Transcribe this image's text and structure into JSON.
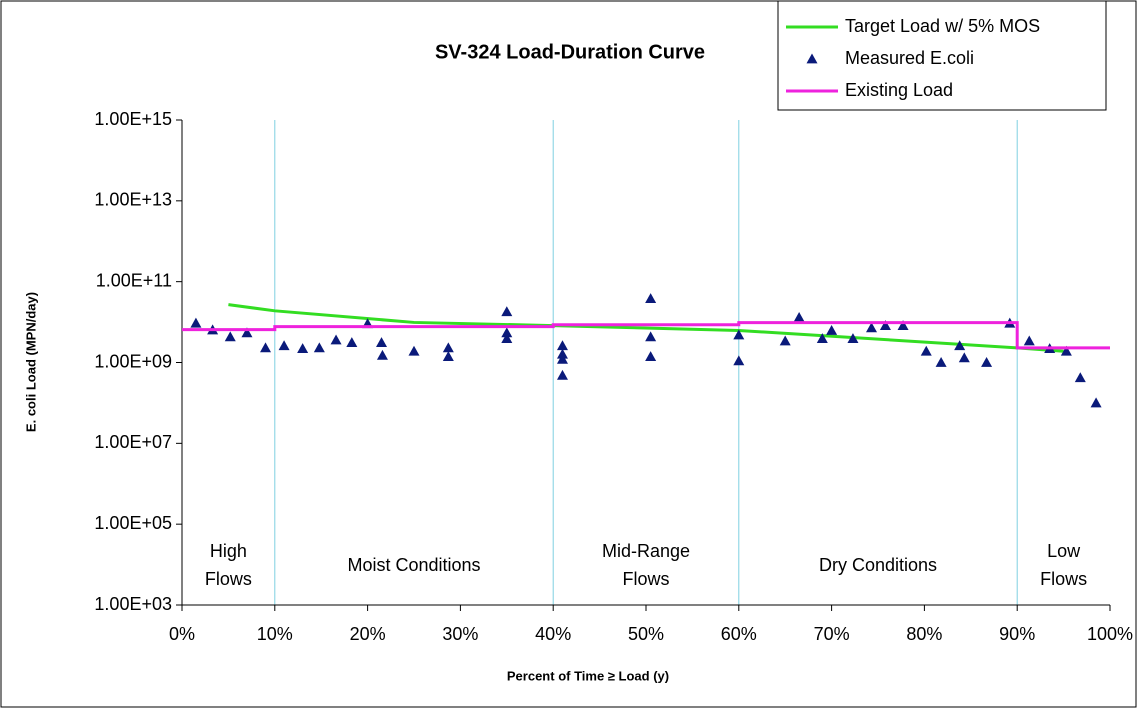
{
  "chart_data": {
    "type": "scatter",
    "title": "SV-324 Load-Duration Curve",
    "x_label": "Percent of Time ≥ Load (y)",
    "y_label": "E. coli Load (MPN/day)",
    "log_y": true,
    "xlim": [
      0,
      100
    ],
    "xticks": [
      {
        "value": 0,
        "label": "0%"
      },
      {
        "value": 10,
        "label": "10%"
      },
      {
        "value": 20,
        "label": "20%"
      },
      {
        "value": 30,
        "label": "30%"
      },
      {
        "value": 40,
        "label": "40%"
      },
      {
        "value": 50,
        "label": "50%"
      },
      {
        "value": 60,
        "label": "60%"
      },
      {
        "value": 70,
        "label": "70%"
      },
      {
        "value": 80,
        "label": "80%"
      },
      {
        "value": 90,
        "label": "90%"
      },
      {
        "value": 100,
        "label": "100%"
      }
    ],
    "ylim": [
      1000,
      1000000000000000
    ],
    "yticks": [
      {
        "value": 1000,
        "label": "1.00E+03"
      },
      {
        "value": 100000,
        "label": "1.00E+05"
      },
      {
        "value": 10000000,
        "label": "1.00E+07"
      },
      {
        "value": 1000000000,
        "label": "1.00E+09"
      },
      {
        "value": 100000000000,
        "label": "1.00E+11"
      },
      {
        "value": 10000000000000,
        "label": "1.00E+13"
      },
      {
        "value": 1000000000000000,
        "label": "1.00E+15"
      }
    ],
    "zone_color": "#7fd0e0",
    "zones": [
      {
        "start": 0,
        "end": 10,
        "label": [
          "High",
          "Flows"
        ]
      },
      {
        "start": 10,
        "end": 40,
        "label": [
          "Moist Conditions"
        ]
      },
      {
        "start": 40,
        "end": 60,
        "label": [
          "Mid-Range",
          "Flows"
        ]
      },
      {
        "start": 60,
        "end": 90,
        "label": [
          "Dry Conditions"
        ]
      },
      {
        "start": 90,
        "end": 100,
        "label": [
          "Low",
          "Flows"
        ]
      }
    ],
    "series": [
      {
        "name": "Target Load w/ 5% MOS",
        "kind": "line",
        "color": "#33dd22",
        "x": [
          5,
          10,
          25,
          40,
          60,
          90,
          95
        ],
        "values": [
          27000000000,
          19000000000,
          9800000000,
          8200000000,
          6200000000,
          2300000000,
          1900000000
        ]
      },
      {
        "name": "Measured E.coli",
        "kind": "marker",
        "color": "#0a1a7a",
        "x": [
          1.5,
          3.3,
          5.2,
          7,
          9,
          11,
          13,
          14.8,
          16.6,
          18.3,
          20,
          21.5,
          21.6,
          25,
          28.7,
          28.7,
          35,
          35,
          35,
          41,
          41,
          41,
          41,
          50.5,
          50.5,
          50.5,
          60,
          60,
          65,
          66.5,
          69,
          70,
          72.3,
          74.3,
          75.8,
          77.7,
          80.2,
          81.8,
          83.8,
          84.3,
          86.7,
          89.2,
          91.3,
          93.5,
          95.3,
          96.8,
          98.5
        ],
        "values": [
          9400000000,
          6400000000,
          4300000000,
          5400000000,
          2300000000,
          2600000000,
          2200000000,
          2300000000,
          3600000000,
          3100000000,
          9100000000,
          3100000000,
          1500000000,
          1900000000,
          2300000000,
          1400000000,
          18000000000,
          5400000000,
          3900000000,
          2600000000,
          1600000000,
          1200000000,
          480000000,
          38000000000,
          4300000000,
          1400000000,
          4800000000,
          1100000000,
          3400000000,
          13000000000,
          3900000000,
          6200000000,
          3900000000,
          7200000000,
          8200000000,
          8200000000,
          1900000000,
          1000000000,
          2600000000,
          1300000000,
          1000000000,
          9400000000,
          3400000000,
          2200000000,
          1900000000,
          420000000,
          100000000
        ]
      },
      {
        "name": "Existing Load",
        "kind": "line",
        "color": "#ee22dd",
        "x": [
          0,
          10,
          10,
          40,
          40,
          60,
          60,
          90,
          90,
          100
        ],
        "values": [
          6500000000,
          6500000000,
          7700000000,
          7700000000,
          8600000000,
          8600000000,
          9700000000,
          9700000000,
          2300000000,
          2300000000
        ]
      }
    ]
  }
}
